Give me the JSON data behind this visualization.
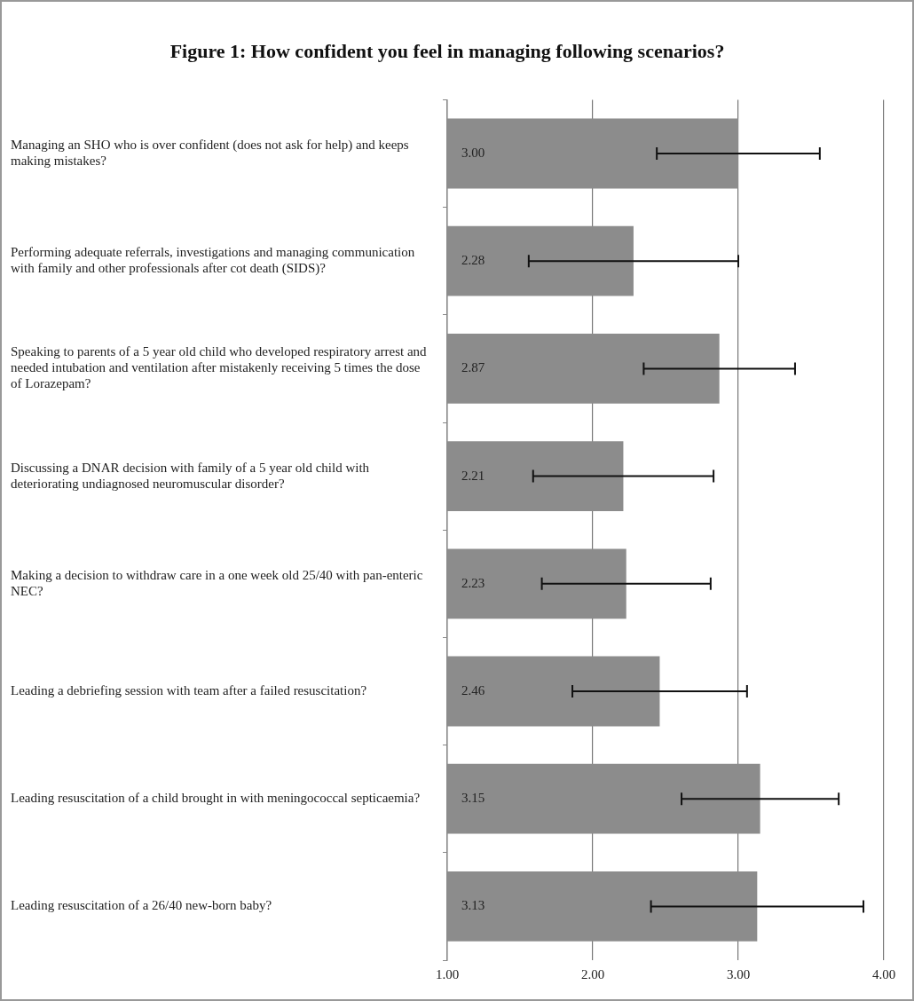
{
  "chart_data": {
    "type": "bar",
    "orientation": "horizontal",
    "title": "Figure 1: How confident you feel in managing following scenarios?",
    "categories": [
      "Managing an SHO who is over confident (does not ask for help) and keeps making mistakes?",
      "Performing adequate referrals, investigations and managing communication with family and other professionals after cot death (SIDS)?",
      "Speaking to parents of a 5 year old child who developed respiratory arrest and needed intubation and ventilation after mistakenly receiving 5 times the dose of Lorazepam?",
      "Discussing a DNAR decision with family of a 5 year old child with deteriorating undiagnosed neuromuscular disorder?",
      "Making a decision to withdraw care in a one week old 25/40 with pan-enteric NEC?",
      "Leading a debriefing session with team after a failed resuscitation?",
      "Leading resuscitation of a child brought in with meningococcal septicaemia?",
      "Leading resuscitation of a 26/40 new-born baby?"
    ],
    "values": [
      3.0,
      2.28,
      2.87,
      2.21,
      2.23,
      2.46,
      3.15,
      3.13
    ],
    "errors": [
      0.56,
      0.72,
      0.52,
      0.62,
      0.58,
      0.6,
      0.54,
      0.73
    ],
    "value_labels": [
      "3.00",
      "2.28",
      "2.87",
      "2.21",
      "2.23",
      "2.46",
      "3.15",
      "3.13"
    ],
    "color": "#8c8c8c",
    "xlim": [
      1,
      4
    ],
    "xticks": [
      {
        "value": 1,
        "label": "1.00"
      },
      {
        "value": 2,
        "label": "2.00"
      },
      {
        "value": 3,
        "label": "3.00"
      },
      {
        "value": 4,
        "label": "4.00"
      }
    ],
    "grid": "x",
    "legend": false
  }
}
